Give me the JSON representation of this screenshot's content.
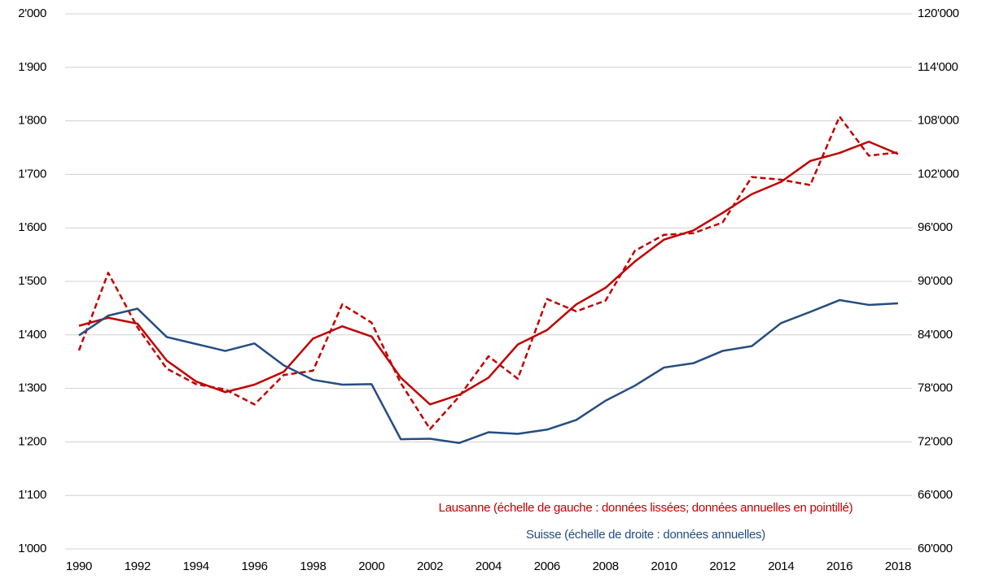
{
  "chart_data": {
    "type": "line",
    "x": [
      1990,
      1991,
      1992,
      1993,
      1994,
      1995,
      1996,
      1997,
      1998,
      1999,
      2000,
      2001,
      2002,
      2003,
      2004,
      2005,
      2006,
      2007,
      2008,
      2009,
      2010,
      2011,
      2012,
      2013,
      2014,
      2015,
      2016,
      2017,
      2018
    ],
    "xlim": [
      1990,
      2018
    ],
    "xticks": [
      1990,
      1992,
      1994,
      1996,
      1998,
      2000,
      2002,
      2004,
      2006,
      2008,
      2010,
      2012,
      2014,
      2016,
      2018
    ],
    "ylim": [
      1000,
      2000
    ],
    "yticks": [
      {
        "value": 1000,
        "label": "1'000"
      },
      {
        "value": 1100,
        "label": "1'100"
      },
      {
        "value": 1200,
        "label": "1'200"
      },
      {
        "value": 1300,
        "label": "1'300"
      },
      {
        "value": 1400,
        "label": "1'400"
      },
      {
        "value": 1500,
        "label": "1'500"
      },
      {
        "value": 1600,
        "label": "1'600"
      },
      {
        "value": 1700,
        "label": "1'700"
      },
      {
        "value": 1800,
        "label": "1'800"
      },
      {
        "value": 1900,
        "label": "1'900"
      },
      {
        "value": 2000,
        "label": "2'000"
      }
    ],
    "y2lim": [
      60000,
      120000
    ],
    "y2ticks": [
      {
        "value": 60000,
        "label": "60'000"
      },
      {
        "value": 66000,
        "label": "66'000"
      },
      {
        "value": 72000,
        "label": "72'000"
      },
      {
        "value": 78000,
        "label": "78'000"
      },
      {
        "value": 84000,
        "label": "84'000"
      },
      {
        "value": 90000,
        "label": "90'000"
      },
      {
        "value": 96000,
        "label": "96'000"
      },
      {
        "value": 102000,
        "label": "102'000"
      },
      {
        "value": 108000,
        "label": "108'000"
      },
      {
        "value": 114000,
        "label": "114'000"
      },
      {
        "value": 120000,
        "label": "120'000"
      }
    ],
    "grid": true,
    "series": [
      {
        "name": "Lausanne (échelle de gauche : données lissées; données annuelles en pointillé)",
        "color": "#c00000",
        "dashed": false,
        "values": [
          1417,
          1432,
          1421,
          1352,
          1313,
          1293,
          1307,
          1331,
          1393,
          1416,
          1397,
          1320,
          1270,
          1288,
          1320,
          1382,
          1409,
          1457,
          1488,
          1537,
          1578,
          1595,
          1628,
          1663,
          1686,
          1725,
          1740,
          1761,
          1738
        ]
      },
      {
        "color": "#c00000",
        "dashed": true,
        "values": [
          1371,
          1516,
          1414,
          1337,
          1308,
          1298,
          1270,
          1325,
          1333,
          1457,
          1423,
          1310,
          1224,
          1285,
          1360,
          1318,
          1467,
          1444,
          1464,
          1557,
          1587,
          1590,
          1610,
          1695,
          1690,
          1680,
          1808,
          1735,
          1741
        ]
      },
      {
        "name": "Suisse (échelle de droite : données annuelles)",
        "color": "#254d80",
        "dashed": false,
        "axis": "y2",
        "values": [
          83940,
          86160,
          86940,
          83760,
          82980,
          82200,
          83040,
          80580,
          78960,
          78420,
          78480,
          72300,
          72360,
          71880,
          73080,
          72900,
          73380,
          74460,
          76620,
          78300,
          80340,
          80820,
          82200,
          82740,
          85320,
          86580,
          87900,
          87360,
          87540
        ]
      }
    ]
  }
}
